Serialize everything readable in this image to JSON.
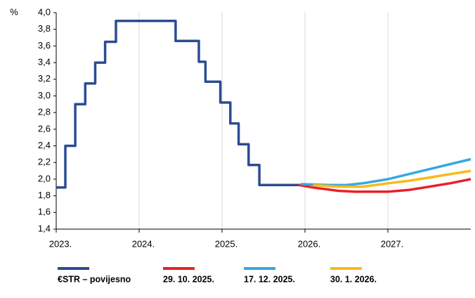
{
  "chart_data": {
    "type": "line",
    "ylabel": "%",
    "xlim": [
      2023,
      2028
    ],
    "xticks": [
      {
        "value": 2023,
        "label": "2023."
      },
      {
        "value": 2024,
        "label": "2024."
      },
      {
        "value": 2025,
        "label": "2025."
      },
      {
        "value": 2026,
        "label": "2026."
      },
      {
        "value": 2027,
        "label": "2027."
      }
    ],
    "ylim": [
      1.4,
      4.0
    ],
    "yticks": [
      {
        "value": 1.4,
        "label": "1,4"
      },
      {
        "value": 1.6,
        "label": "1,6"
      },
      {
        "value": 1.8,
        "label": "1,8"
      },
      {
        "value": 2.0,
        "label": "2,0"
      },
      {
        "value": 2.2,
        "label": "2,2"
      },
      {
        "value": 2.4,
        "label": "2,4"
      },
      {
        "value": 2.6,
        "label": "2,6"
      },
      {
        "value": 2.8,
        "label": "2,8"
      },
      {
        "value": 3.0,
        "label": "3,0"
      },
      {
        "value": 3.2,
        "label": "3,2"
      },
      {
        "value": 3.4,
        "label": "3,4"
      },
      {
        "value": 3.6,
        "label": "3,6"
      },
      {
        "value": 3.8,
        "label": "3,8"
      },
      {
        "value": 4.0,
        "label": "4,0"
      }
    ],
    "grid": "x",
    "series": [
      {
        "name": "€STR – povijesno",
        "color": "#2b4c93",
        "x": [
          2023.0,
          2023.11,
          2023.11,
          2023.23,
          2023.23,
          2023.35,
          2023.35,
          2023.47,
          2023.47,
          2023.59,
          2023.59,
          2023.72,
          2023.72,
          2024.44,
          2024.44,
          2024.72,
          2024.72,
          2024.8,
          2024.8,
          2024.98,
          2024.98,
          2025.1,
          2025.1,
          2025.2,
          2025.2,
          2025.32,
          2025.32,
          2025.45,
          2025.45,
          2025.95
        ],
        "values": [
          1.9,
          1.9,
          2.4,
          2.4,
          2.9,
          2.9,
          3.15,
          3.15,
          3.4,
          3.4,
          3.65,
          3.65,
          3.9,
          3.9,
          3.66,
          3.66,
          3.41,
          3.41,
          3.17,
          3.17,
          2.92,
          2.92,
          2.67,
          2.67,
          2.42,
          2.42,
          2.17,
          2.17,
          1.93,
          1.93
        ]
      },
      {
        "name": "29. 10. 2025.",
        "color": "#e8202a",
        "x": [
          2025.92,
          2026.1,
          2026.25,
          2026.4,
          2026.6,
          2027.0,
          2027.25,
          2027.5,
          2027.75,
          2028.0
        ],
        "values": [
          1.93,
          1.9,
          1.88,
          1.86,
          1.85,
          1.85,
          1.87,
          1.91,
          1.95,
          2.0
        ]
      },
      {
        "name": "17. 12. 2025.",
        "color": "#35a8e0",
        "x": [
          2025.95,
          2026.3,
          2026.5,
          2026.7,
          2027.0,
          2027.25,
          2027.5,
          2027.75,
          2028.0
        ],
        "values": [
          1.94,
          1.93,
          1.93,
          1.95,
          2.0,
          2.06,
          2.12,
          2.18,
          2.24
        ]
      },
      {
        "name": "30. 1. 2026.",
        "color": "#fbb917",
        "x": [
          2026.1,
          2026.4,
          2026.7,
          2027.0,
          2027.25,
          2027.5,
          2027.75,
          2028.0
        ],
        "values": [
          1.93,
          1.91,
          1.91,
          1.95,
          1.98,
          2.02,
          2.06,
          2.1
        ]
      }
    ]
  }
}
